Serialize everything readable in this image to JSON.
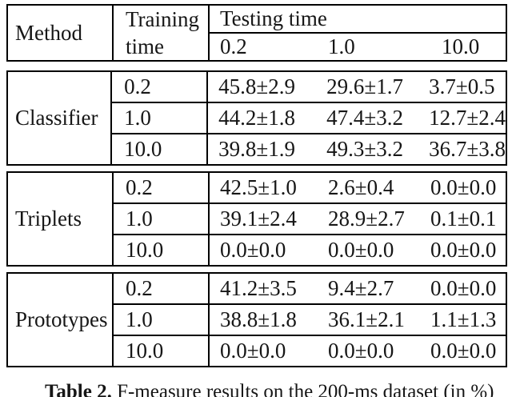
{
  "table": {
    "header": {
      "method": "Method",
      "training_line1": "Training",
      "training_line2": "time",
      "testing": "Testing time",
      "testing_times": [
        "0.2",
        "1.0",
        "10.0"
      ]
    },
    "groups": [
      {
        "method": "Classifier",
        "rows": [
          {
            "training_time": "0.2",
            "values": [
              "45.8±2.9",
              "29.6±1.7",
              "3.7±0.5"
            ]
          },
          {
            "training_time": "1.0",
            "values": [
              "44.2±1.8",
              "47.4±3.2",
              "12.7±2.4"
            ]
          },
          {
            "training_time": "10.0",
            "values": [
              "39.8±1.9",
              "49.3±3.2",
              "36.7±3.8"
            ]
          }
        ]
      },
      {
        "method": "Triplets",
        "rows": [
          {
            "training_time": "0.2",
            "values": [
              "42.5±1.0",
              "2.6±0.4",
              "0.0±0.0"
            ]
          },
          {
            "training_time": "1.0",
            "values": [
              "39.1±2.4",
              "28.9±2.7",
              "0.1±0.1"
            ]
          },
          {
            "training_time": "10.0",
            "values": [
              "0.0±0.0",
              "0.0±0.0",
              "0.0±0.0"
            ]
          }
        ]
      },
      {
        "method": "Prototypes",
        "rows": [
          {
            "training_time": "0.2",
            "values": [
              "41.2±3.5",
              "9.4±2.7",
              "0.0±0.0"
            ]
          },
          {
            "training_time": "1.0",
            "values": [
              "38.8±1.8",
              "36.1±2.1",
              "1.1±1.3"
            ]
          },
          {
            "training_time": "10.0",
            "values": [
              "0.0±0.0",
              "0.0±0.0",
              "0.0±0.0"
            ]
          }
        ]
      }
    ]
  },
  "caption": {
    "label": "Table 2.",
    "text": "F-measure results on the 200-ms dataset (in %)"
  },
  "colors": {
    "background": "#ffffff",
    "border": "#000000",
    "text": "#161616"
  }
}
